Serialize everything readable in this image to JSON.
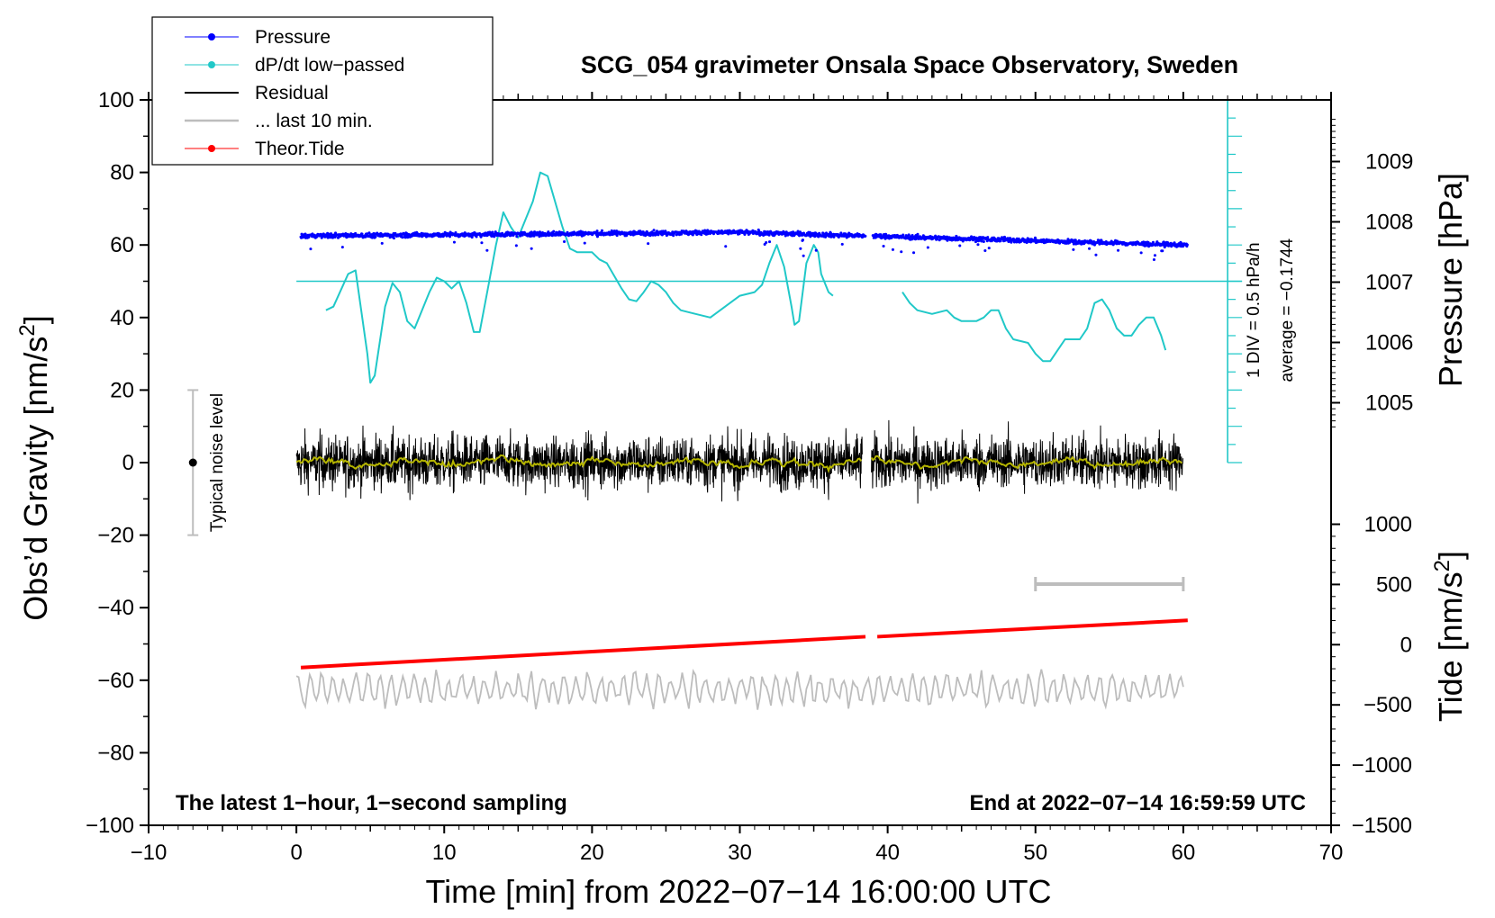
{
  "chart_data": {
    "type": "line",
    "title": "SCG_054 gravimeter Onsala Space Observatory, Sweden",
    "xlabel": "Time [min] from 2022−07−14 16:00:00 UTC",
    "ylabel_left": "Obs’d Gravity [nm/s",
    "ylabel_left_sup": "2",
    "ylabel_left_close": "]",
    "ylabel_right_pressure": "Pressure [hPa]",
    "ylabel_right_tide": "Tide [nm/s",
    "ylabel_right_tide_sup": "2",
    "ylabel_right_tide_close": "]",
    "xlim": [
      -10,
      70
    ],
    "ylim_left": [
      -100,
      100
    ],
    "x_ticks": [
      {
        "v": -10,
        "label": "−10"
      },
      {
        "v": 0,
        "label": "0"
      },
      {
        "v": 10,
        "label": "10"
      },
      {
        "v": 20,
        "label": "20"
      },
      {
        "v": 30,
        "label": "30"
      },
      {
        "v": 40,
        "label": "40"
      },
      {
        "v": 50,
        "label": "50"
      },
      {
        "v": 60,
        "label": "60"
      },
      {
        "v": 70,
        "label": "70"
      }
    ],
    "y_left_ticks": [
      {
        "v": 100,
        "label": "100"
      },
      {
        "v": 80,
        "label": "80"
      },
      {
        "v": 60,
        "label": "60"
      },
      {
        "v": 40,
        "label": "40"
      },
      {
        "v": 20,
        "label": "20"
      },
      {
        "v": 0,
        "label": "0"
      },
      {
        "v": -20,
        "label": "−20"
      },
      {
        "v": -40,
        "label": "−40"
      },
      {
        "v": -60,
        "label": "−60"
      },
      {
        "v": -80,
        "label": "−80"
      },
      {
        "v": -100,
        "label": "−100"
      }
    ],
    "pressure_axis": {
      "map": {
        "hpa_a": 1009,
        "grav_a": 83,
        "hpa_b": 1005,
        "grav_b": 16.5
      },
      "ticks": [
        {
          "v": 1009,
          "label": "1009"
        },
        {
          "v": 1008,
          "label": "1008"
        },
        {
          "v": 1007,
          "label": "1007"
        },
        {
          "v": 1006,
          "label": "1006"
        },
        {
          "v": 1005,
          "label": "1005"
        }
      ]
    },
    "tide_axis": {
      "map": {
        "tide_a": 1000,
        "grav_a": -17,
        "tide_b": -1500,
        "grav_b": -100
      },
      "ticks": [
        {
          "v": 1000,
          "label": "1000"
        },
        {
          "v": 500,
          "label": "500"
        },
        {
          "v": 0,
          "label": "0"
        },
        {
          "v": -500,
          "label": "−500"
        },
        {
          "v": -1000,
          "label": "−1000"
        },
        {
          "v": -1500,
          "label": "−1500"
        }
      ]
    },
    "dpdt_scale": {
      "x": 63,
      "from": 0,
      "to": 100,
      "step": 5,
      "major_every": 10,
      "label_div": "1 DIV = 0.5 hPa/h",
      "label_avg": "average = −0.1744",
      "baseline": 50
    },
    "legend": [
      {
        "name": "Pressure",
        "color": "#0000ff",
        "marker": true
      },
      {
        "name": "dP/dt low−passed",
        "color": "#20c8c8",
        "marker": true
      },
      {
        "name": "Residual",
        "color": "#000000",
        "marker": false
      },
      {
        "name": "... last 10 min.",
        "color": "#bdbdbd",
        "marker": false
      },
      {
        "name": "Theor.Tide",
        "color": "#ff0000",
        "marker": true
      }
    ],
    "noise_bar": {
      "x": -7,
      "y": 0,
      "low": -20,
      "high": 20,
      "label": "Typical noise level"
    },
    "last10_bar": {
      "x_start": 50,
      "x_end": 60,
      "y": -33.5
    },
    "gap": {
      "start": 38.5,
      "end": 39
    },
    "series": [
      {
        "name": "Pressure",
        "color": "#0000ff",
        "level_start": 62.5,
        "level_mid": 63.5,
        "level_end": 60,
        "x_end": 60.3,
        "dips": [
          [
            12.9,
            58.5
          ],
          [
            15.9,
            59
          ],
          [
            34.3,
            57
          ],
          [
            34.1,
            59
          ]
        ]
      },
      {
        "name": "dP/dt low−passed",
        "color": "#20c8c8",
        "segments": [
          [
            [
              2,
              42
            ],
            [
              2.5,
              43
            ],
            [
              3.5,
              52
            ],
            [
              4,
              53
            ],
            [
              4.8,
              30
            ],
            [
              5,
              22
            ],
            [
              5.3,
              24
            ],
            [
              6,
              43
            ],
            [
              6.5,
              49.5
            ],
            [
              7,
              47
            ],
            [
              7.5,
              39
            ],
            [
              8,
              37
            ],
            [
              9,
              47
            ],
            [
              9.5,
              51
            ],
            [
              10,
              50
            ],
            [
              10.5,
              48
            ],
            [
              11,
              50
            ],
            [
              11.5,
              44
            ],
            [
              12,
              36
            ],
            [
              12.4,
              36
            ],
            [
              13,
              49
            ],
            [
              13.5,
              60
            ],
            [
              14,
              69
            ],
            [
              14.5,
              65
            ],
            [
              15,
              62
            ],
            [
              16,
              72
            ],
            [
              16.5,
              80
            ],
            [
              17,
              79
            ],
            [
              18,
              65
            ],
            [
              18.5,
              59
            ],
            [
              19,
              58
            ],
            [
              20,
              58
            ],
            [
              20.5,
              56
            ],
            [
              21,
              55
            ],
            [
              22,
              48
            ],
            [
              22.5,
              45
            ],
            [
              23,
              44.5
            ],
            [
              23.5,
              47
            ],
            [
              24,
              50
            ],
            [
              24.5,
              49
            ],
            [
              25,
              47
            ],
            [
              25.5,
              44
            ],
            [
              26,
              42
            ],
            [
              27,
              41
            ],
            [
              28,
              40
            ],
            [
              29,
              43
            ],
            [
              30,
              46
            ],
            [
              31,
              47
            ],
            [
              31.5,
              49
            ],
            [
              32,
              55
            ],
            [
              32.5,
              60
            ],
            [
              33,
              54
            ],
            [
              33.5,
              43
            ],
            [
              33.7,
              38
            ],
            [
              34,
              39
            ],
            [
              34.5,
              55
            ],
            [
              35,
              60
            ],
            [
              35.3,
              58
            ],
            [
              35.5,
              52
            ],
            [
              36,
              47
            ],
            [
              36.3,
              46
            ]
          ],
          [
            [
              41,
              47
            ],
            [
              41.5,
              44
            ],
            [
              42,
              42
            ],
            [
              43,
              41
            ],
            [
              44,
              42
            ],
            [
              44.5,
              40
            ],
            [
              45,
              39
            ],
            [
              46,
              39
            ],
            [
              46.5,
              40
            ],
            [
              47,
              42
            ],
            [
              47.5,
              42
            ],
            [
              48,
              37
            ],
            [
              48.5,
              34
            ],
            [
              49.5,
              33
            ],
            [
              50,
              30
            ],
            [
              50.5,
              28
            ],
            [
              51,
              28
            ],
            [
              51.5,
              31
            ],
            [
              52,
              34
            ],
            [
              53,
              34
            ],
            [
              53.5,
              37
            ],
            [
              54,
              44
            ],
            [
              54.5,
              45
            ],
            [
              55,
              42
            ],
            [
              55.5,
              37
            ],
            [
              56,
              35
            ],
            [
              56.5,
              35
            ],
            [
              57,
              38
            ],
            [
              57.5,
              40
            ],
            [
              58,
              40
            ],
            [
              58.5,
              35
            ],
            [
              58.8,
              31
            ]
          ]
        ]
      },
      {
        "name": "Residual",
        "color": "#000000",
        "x_start": 0,
        "x_end": 60,
        "amplitude": 6,
        "gap": [
          38.3,
          38.9
        ],
        "smooth_color": "#b5b500"
      },
      {
        "name": "... last 10 min.",
        "color": "#bdbdbd",
        "x_start": 0,
        "x_end": 60,
        "mean": -62.5,
        "amplitude": 3.5
      },
      {
        "name": "Theor.Tide",
        "color": "#ff0000",
        "segments": [
          [
            [
              0.3,
              -56.5
            ],
            [
              38.5,
              -48
            ]
          ],
          [
            [
              39.3,
              -48
            ],
            [
              60.3,
              -43.5
            ]
          ]
        ]
      }
    ],
    "annotation_left": "The latest 1−hour, 1−second sampling",
    "annotation_right": "End at 2022−07−14 16:59:59 UTC"
  }
}
